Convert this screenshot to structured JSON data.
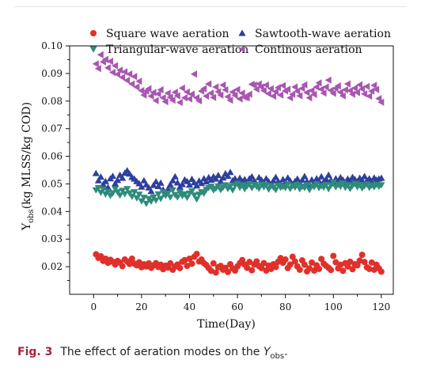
{
  "caption": {
    "label": "Fig. 3",
    "text_before": "The effect of aeration modes on the ",
    "var_main": "Y",
    "var_sub": "obs",
    "text_after": "."
  },
  "chart_data": {
    "type": "scatter",
    "title": "",
    "xlabel": "Time(Day)",
    "ylabel_parts": {
      "pre": "Y",
      "sub": "obs",
      "post": "(kg MLSS/kg COD)"
    },
    "xlim": [
      -10,
      125
    ],
    "ylim": [
      0.01,
      0.1
    ],
    "xticks": [
      0,
      20,
      40,
      60,
      80,
      100,
      120
    ],
    "yticks": [
      0.02,
      0.03,
      0.04,
      0.05,
      0.06,
      0.07,
      0.08,
      0.09,
      0.1
    ],
    "ytick_labels": [
      "0.02",
      "0.03",
      "0.04",
      "0.05",
      "0.06",
      "0.07",
      "0.08",
      "0.09",
      "0.10"
    ],
    "grid": false,
    "legend_position": "top",
    "series": [
      {
        "name": "Square wave aeration",
        "marker": "circle",
        "color": "#e0302a",
        "x": [
          1,
          2,
          3,
          4,
          5,
          6,
          7,
          8,
          9,
          10,
          11,
          12,
          13,
          14,
          15,
          16,
          17,
          18,
          19,
          20,
          21,
          22,
          23,
          24,
          25,
          26,
          27,
          28,
          29,
          30,
          31,
          32,
          33,
          34,
          35,
          36,
          37,
          38,
          39,
          40,
          41,
          42,
          43,
          44,
          45,
          46,
          47,
          48,
          49,
          50,
          51,
          52,
          53,
          54,
          55,
          56,
          57,
          58,
          59,
          60,
          61,
          62,
          63,
          64,
          65,
          66,
          67,
          68,
          69,
          70,
          71,
          72,
          73,
          74,
          75,
          76,
          77,
          78,
          79,
          80,
          81,
          82,
          83,
          84,
          85,
          86,
          87,
          88,
          89,
          90,
          91,
          92,
          93,
          94,
          95,
          96,
          97,
          98,
          99,
          100,
          101,
          102,
          103,
          104,
          105,
          106,
          107,
          108,
          109,
          110,
          111,
          112,
          113,
          114,
          115,
          116,
          117,
          118,
          119,
          120
        ],
        "y": [
          0.0245,
          0.0232,
          0.0238,
          0.0221,
          0.0229,
          0.0214,
          0.0225,
          0.0218,
          0.0208,
          0.0221,
          0.0215,
          0.0202,
          0.0226,
          0.0219,
          0.021,
          0.0229,
          0.0211,
          0.0205,
          0.0216,
          0.0198,
          0.0209,
          0.0201,
          0.0212,
          0.0196,
          0.0205,
          0.0213,
          0.0199,
          0.0207,
          0.0191,
          0.0204,
          0.0197,
          0.0212,
          0.0189,
          0.0201,
          0.0208,
          0.0195,
          0.0218,
          0.0224,
          0.0203,
          0.0229,
          0.0211,
          0.0236,
          0.0246,
          0.0219,
          0.0226,
          0.0213,
          0.0206,
          0.0195,
          0.0185,
          0.0212,
          0.0179,
          0.0198,
          0.0203,
          0.0189,
          0.0196,
          0.0181,
          0.0209,
          0.0194,
          0.0186,
          0.0201,
          0.0213,
          0.0224,
          0.0208,
          0.0196,
          0.0217,
          0.0187,
          0.0208,
          0.0219,
          0.0202,
          0.0195,
          0.0213,
          0.0186,
          0.0204,
          0.0192,
          0.0209,
          0.0199,
          0.0218,
          0.0231,
          0.0214,
          0.0226,
          0.0195,
          0.0208,
          0.0236,
          0.0219,
          0.0201,
          0.0189,
          0.0223,
          0.0207,
          0.0183,
          0.0194,
          0.0215,
          0.0186,
          0.0205,
          0.0192,
          0.0228,
          0.0211,
          0.0203,
          0.0196,
          0.0188,
          0.0239,
          0.0216,
          0.0194,
          0.0207,
          0.0185,
          0.0213,
          0.0201,
          0.0218,
          0.0191,
          0.0209,
          0.0205,
          0.0222,
          0.0243,
          0.0217,
          0.0198,
          0.0192,
          0.0215,
          0.0189,
          0.0207,
          0.0194,
          0.0182
        ]
      },
      {
        "name": "Sawtooth-wave aeration",
        "marker": "triangle-up",
        "color": "#2e3f9e",
        "x": [
          1,
          2,
          3,
          4,
          5,
          6,
          7,
          8,
          9,
          10,
          11,
          12,
          13,
          14,
          15,
          16,
          17,
          18,
          19,
          20,
          21,
          22,
          23,
          24,
          25,
          26,
          27,
          28,
          29,
          30,
          31,
          32,
          33,
          34,
          35,
          36,
          37,
          38,
          39,
          40,
          41,
          42,
          43,
          44,
          45,
          46,
          47,
          48,
          49,
          50,
          51,
          52,
          53,
          54,
          55,
          56,
          57,
          58,
          59,
          60,
          61,
          62,
          63,
          64,
          65,
          66,
          67,
          68,
          69,
          70,
          71,
          72,
          73,
          74,
          75,
          76,
          77,
          78,
          79,
          80,
          81,
          82,
          83,
          84,
          85,
          86,
          87,
          88,
          89,
          90,
          91,
          92,
          93,
          94,
          95,
          96,
          97,
          98,
          99,
          100,
          101,
          102,
          103,
          104,
          105,
          106,
          107,
          108,
          109,
          110,
          111,
          112,
          113,
          114,
          115,
          116,
          117,
          118,
          119,
          120
        ],
        "y": [
          0.0538,
          0.0512,
          0.0525,
          0.0498,
          0.0509,
          0.0487,
          0.0519,
          0.0528,
          0.0501,
          0.0513,
          0.0532,
          0.0521,
          0.0539,
          0.0548,
          0.0536,
          0.0524,
          0.0518,
          0.0509,
          0.0501,
          0.0489,
          0.0512,
          0.0497,
          0.0486,
          0.0473,
          0.0495,
          0.0508,
          0.0491,
          0.0503,
          0.0479,
          0.0466,
          0.0481,
          0.0497,
          0.0512,
          0.0526,
          0.0504,
          0.0489,
          0.0498,
          0.0515,
          0.0509,
          0.0496,
          0.0517,
          0.0505,
          0.0493,
          0.0511,
          0.0502,
          0.0519,
          0.0508,
          0.0523,
          0.0514,
          0.0526,
          0.0518,
          0.0531,
          0.0509,
          0.0522,
          0.0537,
          0.0528,
          0.0542,
          0.0512,
          0.0519,
          0.0503,
          0.0521,
          0.0508,
          0.0516,
          0.0502,
          0.0519,
          0.0526,
          0.0511,
          0.0498,
          0.0523,
          0.0514,
          0.0505,
          0.0519,
          0.0508,
          0.0496,
          0.0512,
          0.0524,
          0.0509,
          0.0501,
          0.0516,
          0.0506,
          0.0522,
          0.0511,
          0.0497,
          0.0509,
          0.0518,
          0.0503,
          0.0514,
          0.0527,
          0.0509,
          0.0498,
          0.0515,
          0.0504,
          0.0519,
          0.0511,
          0.0526,
          0.0508,
          0.0517,
          0.0532,
          0.0514,
          0.0501,
          0.0519,
          0.0509,
          0.0523,
          0.0514,
          0.0505,
          0.0518,
          0.0511,
          0.0524,
          0.0516,
          0.0508,
          0.0521,
          0.0513,
          0.0527,
          0.0512,
          0.0519,
          0.0509,
          0.0522,
          0.0514,
          0.0518,
          0.0521
        ]
      },
      {
        "name": "Triangular-wave aeration",
        "marker": "triangle-down",
        "color": "#2e8b7a",
        "x": [
          1,
          2,
          3,
          4,
          5,
          6,
          7,
          8,
          9,
          10,
          11,
          12,
          13,
          14,
          15,
          16,
          17,
          18,
          19,
          20,
          21,
          22,
          23,
          24,
          25,
          26,
          27,
          28,
          29,
          30,
          31,
          32,
          33,
          34,
          35,
          36,
          37,
          38,
          39,
          40,
          41,
          42,
          43,
          44,
          45,
          46,
          47,
          48,
          49,
          50,
          51,
          52,
          53,
          54,
          55,
          56,
          57,
          58,
          59,
          60,
          61,
          62,
          63,
          64,
          65,
          66,
          67,
          68,
          69,
          70,
          71,
          72,
          73,
          74,
          75,
          76,
          77,
          78,
          79,
          80,
          81,
          82,
          83,
          84,
          85,
          86,
          87,
          88,
          89,
          90,
          91,
          92,
          93,
          94,
          95,
          96,
          97,
          98,
          99,
          100,
          101,
          102,
          103,
          104,
          105,
          106,
          107,
          108,
          109,
          110,
          111,
          112,
          113,
          114,
          115,
          116,
          117,
          118,
          119,
          120
        ],
        "y": [
          0.0478,
          0.0486,
          0.0469,
          0.0481,
          0.0463,
          0.0472,
          0.0458,
          0.0467,
          0.0482,
          0.0471,
          0.0459,
          0.0476,
          0.0464,
          0.0482,
          0.0467,
          0.0455,
          0.0471,
          0.0449,
          0.0462,
          0.0438,
          0.0451,
          0.0429,
          0.0446,
          0.0437,
          0.0452,
          0.0441,
          0.0463,
          0.0447,
          0.0471,
          0.0458,
          0.0466,
          0.0452,
          0.0478,
          0.0461,
          0.0452,
          0.0469,
          0.0457,
          0.0463,
          0.0451,
          0.0466,
          0.0474,
          0.0459,
          0.0445,
          0.0462,
          0.0471,
          0.0466,
          0.0479,
          0.0486,
          0.0491,
          0.0478,
          0.0484,
          0.0492,
          0.0479,
          0.0488,
          0.0496,
          0.0483,
          0.0491,
          0.0478,
          0.0495,
          0.0501,
          0.0487,
          0.0496,
          0.0482,
          0.0492,
          0.0499,
          0.0486,
          0.0497,
          0.0491,
          0.0484,
          0.0498,
          0.0489,
          0.0496,
          0.0481,
          0.0493,
          0.0488,
          0.0479,
          0.0495,
          0.0487,
          0.0491,
          0.0486,
          0.0499,
          0.0483,
          0.0494,
          0.0488,
          0.0497,
          0.0482,
          0.0491,
          0.0486,
          0.0496,
          0.0479,
          0.0492,
          0.0489,
          0.0499,
          0.0486,
          0.0493,
          0.0488,
          0.0497,
          0.0482,
          0.0495,
          0.0506,
          0.0489,
          0.0498,
          0.0491,
          0.0502,
          0.0487,
          0.0496,
          0.0483,
          0.0494,
          0.0501,
          0.0489,
          0.0497,
          0.0485,
          0.0493,
          0.0499,
          0.0487,
          0.0495,
          0.0489,
          0.0498,
          0.0491,
          0.0496
        ]
      },
      {
        "name": "Continous aeration",
        "marker": "triangle-left",
        "color": "#a757b0",
        "x": [
          1,
          2,
          3,
          4,
          5,
          6,
          7,
          8,
          9,
          10,
          11,
          12,
          13,
          14,
          15,
          16,
          17,
          18,
          19,
          20,
          21,
          22,
          23,
          24,
          25,
          26,
          27,
          28,
          29,
          30,
          31,
          32,
          33,
          34,
          35,
          36,
          37,
          38,
          39,
          40,
          41,
          42,
          43,
          44,
          45,
          46,
          47,
          48,
          49,
          50,
          51,
          52,
          53,
          54,
          55,
          56,
          57,
          58,
          59,
          60,
          61,
          62,
          63,
          64,
          65,
          66,
          67,
          68,
          69,
          70,
          71,
          72,
          73,
          74,
          75,
          76,
          77,
          78,
          79,
          80,
          81,
          82,
          83,
          84,
          85,
          86,
          87,
          88,
          89,
          90,
          91,
          92,
          93,
          94,
          95,
          96,
          97,
          98,
          99,
          100,
          101,
          102,
          103,
          104,
          105,
          106,
          107,
          108,
          109,
          110,
          111,
          112,
          113,
          114,
          115,
          116,
          117,
          118,
          119,
          120
        ],
        "y": [
          0.0935,
          0.0918,
          0.0968,
          0.0942,
          0.0951,
          0.0921,
          0.0944,
          0.0904,
          0.0928,
          0.0897,
          0.0912,
          0.0886,
          0.0906,
          0.0875,
          0.0898,
          0.0862,
          0.0889,
          0.0851,
          0.0872,
          0.0838,
          0.0822,
          0.0836,
          0.0845,
          0.0818,
          0.0831,
          0.0802,
          0.0826,
          0.0841,
          0.0812,
          0.0798,
          0.0829,
          0.0814,
          0.0803,
          0.0832,
          0.0819,
          0.0795,
          0.0847,
          0.0812,
          0.0833,
          0.0808,
          0.0825,
          0.0898,
          0.0812,
          0.0801,
          0.0836,
          0.0845,
          0.0818,
          0.0862,
          0.0829,
          0.0813,
          0.0851,
          0.0834,
          0.0822,
          0.0858,
          0.0841,
          0.0816,
          0.0803,
          0.0833,
          0.0821,
          0.0842,
          0.0808,
          0.0829,
          0.0814,
          0.0812,
          0.0825,
          0.0861,
          0.0858,
          0.0843,
          0.0862,
          0.0851,
          0.0838,
          0.0858,
          0.0827,
          0.0845,
          0.0818,
          0.0834,
          0.0849,
          0.0822,
          0.0856,
          0.0837,
          0.0843,
          0.0812,
          0.0825,
          0.0851,
          0.0836,
          0.0819,
          0.0846,
          0.0859,
          0.0831,
          0.0812,
          0.0838,
          0.0824,
          0.0851,
          0.0866,
          0.0843,
          0.0829,
          0.0851,
          0.0876,
          0.0839,
          0.0828,
          0.0846,
          0.0855,
          0.0832,
          0.0819,
          0.0841,
          0.0862,
          0.0838,
          0.0825,
          0.0847,
          0.0831,
          0.0859,
          0.0844,
          0.0826,
          0.0853,
          0.0818,
          0.0836,
          0.0857,
          0.0842,
          0.0809,
          0.0796
        ]
      }
    ]
  }
}
